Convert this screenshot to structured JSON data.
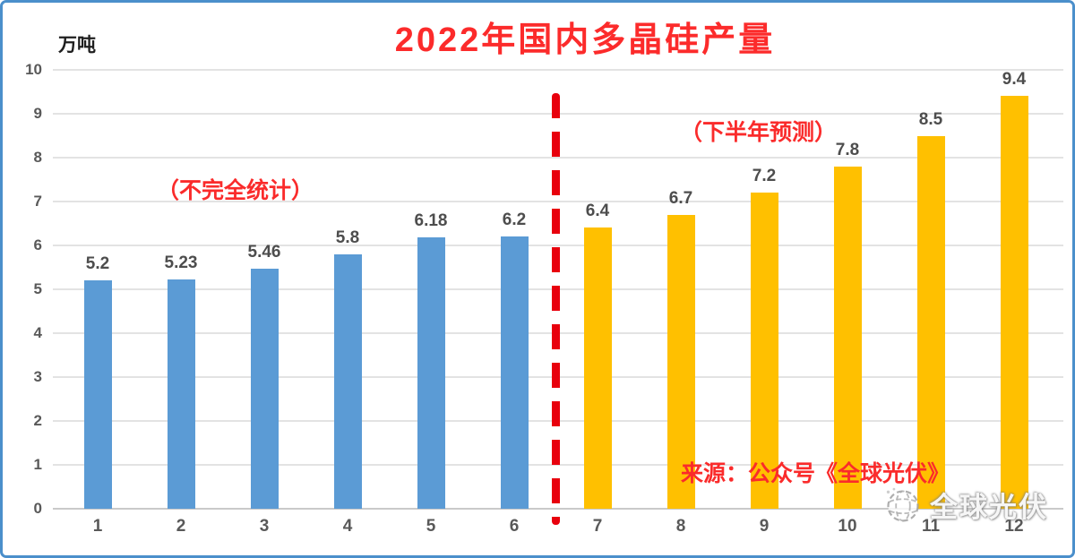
{
  "chart_data": {
    "type": "bar",
    "title": "2022年国内多晶硅产量",
    "ylabel": "万吨",
    "xlabel": "",
    "ylim": [
      0,
      10
    ],
    "y_ticks": [
      0,
      1,
      2,
      3,
      4,
      5,
      6,
      7,
      8,
      9,
      10
    ],
    "grid": true,
    "legend": "none",
    "categories": [
      "1",
      "2",
      "3",
      "4",
      "5",
      "6",
      "7",
      "8",
      "9",
      "10",
      "11",
      "12"
    ],
    "values": [
      5.2,
      5.23,
      5.46,
      5.8,
      6.18,
      6.2,
      6.4,
      6.7,
      7.2,
      7.8,
      8.5,
      9.4
    ],
    "bar_labels": [
      "5.2",
      "5.23",
      "5.46",
      "5.8",
      "6.18",
      "6.2",
      "6.4",
      "6.7",
      "7.2",
      "7.8",
      "8.5",
      "9.4"
    ],
    "series_split": {
      "actual_months": "1-6",
      "forecast_months": "7-12",
      "split_after_index": 6
    },
    "annotations": {
      "left_note": "（不完全统计）",
      "right_note": "（下半年预测）",
      "source_note": "来源：公众号《全球光伏》"
    },
    "divider_hint": "red dashed vertical line between months 6 and 7"
  },
  "watermark": {
    "text": "全球光伏"
  },
  "colors": {
    "bar_actual": "#5B9BD5",
    "bar_forecast": "#FFC000",
    "accent_red": "#FA2B2B",
    "title_red": "#FC2B2B",
    "divider_red": "#E8000D",
    "gridline": "#E3E3E3",
    "axis_line": "#C9C9C9",
    "tick_text": "#595959",
    "label_text": "#4D4D4D",
    "frame_border": "#4B8FCB"
  }
}
